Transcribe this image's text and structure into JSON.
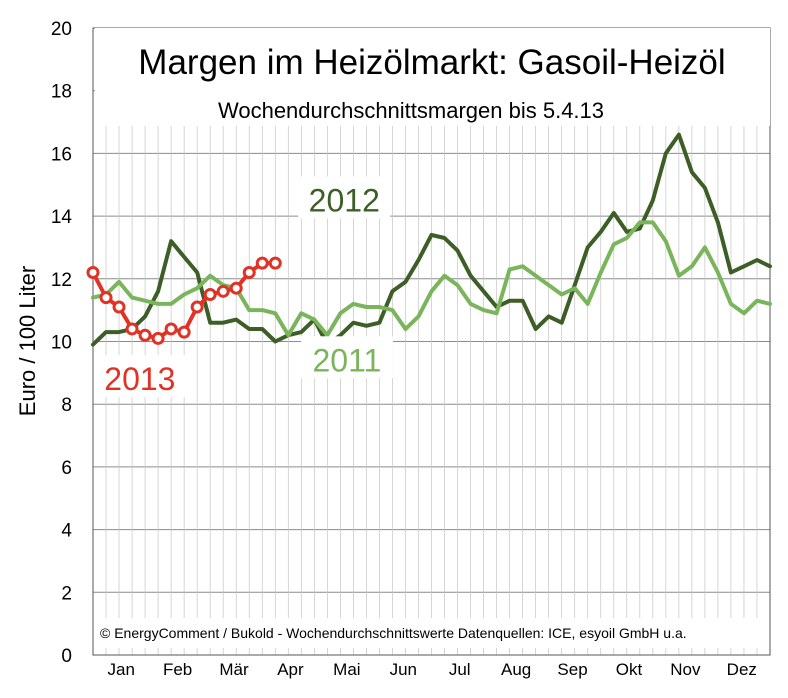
{
  "chart_data": {
    "type": "line",
    "title": "Margen im Heizölmarkt: Gasoil-Heizöl",
    "subtitle": "Wochendurchschnittsmargen bis 5.4.13",
    "ylabel": "Euro / 100 Liter",
    "xlabel": "",
    "ylim": [
      0,
      20
    ],
    "yticks": [
      0,
      2,
      4,
      6,
      8,
      10,
      12,
      14,
      16,
      18,
      20
    ],
    "xlim": [
      0,
      52
    ],
    "months": [
      "Jan",
      "Feb",
      "Mär",
      "Apr",
      "Mai",
      "Jun",
      "Jul",
      "Aug",
      "Sep",
      "Okt",
      "Nov",
      "Dez"
    ],
    "source_note": "© EnergyComment / Bukold - Wochendurchschnittswerte Datenquellen: ICE, esyoil GmbH u.a.",
    "grid": true,
    "series": [
      {
        "name": "2012",
        "color": "#3d5e26",
        "marker": "none",
        "x": [
          0,
          1,
          2,
          3,
          4,
          5,
          6,
          7,
          8,
          9,
          10,
          11,
          12,
          13,
          14,
          15,
          16,
          17,
          18,
          19,
          20,
          21,
          22,
          23,
          24,
          25,
          26,
          27,
          28,
          29,
          30,
          31,
          32,
          33,
          34,
          35,
          36,
          37,
          38,
          39,
          40,
          41,
          42,
          43,
          44,
          45,
          46,
          47,
          48,
          49,
          50,
          51,
          52
        ],
        "values": [
          9.9,
          10.3,
          10.3,
          10.4,
          10.8,
          11.6,
          13.2,
          12.7,
          12.2,
          10.6,
          10.6,
          10.7,
          10.4,
          10.4,
          10.0,
          10.2,
          10.3,
          10.7,
          9.9,
          10.2,
          10.6,
          10.5,
          10.6,
          11.6,
          11.9,
          12.6,
          13.4,
          13.3,
          12.9,
          12.1,
          11.6,
          11.1,
          11.3,
          11.3,
          10.4,
          10.8,
          10.6,
          11.8,
          13.0,
          13.5,
          14.1,
          13.5,
          13.6,
          14.5,
          16.0,
          16.6,
          15.4,
          14.9,
          13.8,
          12.2,
          12.4,
          12.6,
          12.4
        ]
      },
      {
        "name": "2011",
        "color": "#7ab55c",
        "marker": "none",
        "x": [
          0,
          1,
          2,
          3,
          4,
          5,
          6,
          7,
          8,
          9,
          10,
          11,
          12,
          13,
          14,
          15,
          16,
          17,
          18,
          19,
          20,
          21,
          22,
          23,
          24,
          25,
          26,
          27,
          28,
          29,
          30,
          31,
          32,
          33,
          34,
          35,
          36,
          37,
          38,
          39,
          40,
          41,
          42,
          43,
          44,
          45,
          46,
          47,
          48,
          49,
          50,
          51,
          52
        ],
        "values": [
          11.4,
          11.5,
          11.9,
          11.4,
          11.3,
          11.2,
          11.2,
          11.5,
          11.7,
          12.1,
          11.8,
          11.7,
          11.0,
          11.0,
          10.9,
          10.2,
          10.9,
          10.7,
          10.2,
          10.9,
          11.2,
          11.1,
          11.1,
          11.0,
          10.4,
          10.8,
          11.6,
          12.1,
          11.8,
          11.2,
          11.0,
          10.9,
          12.3,
          12.4,
          12.1,
          11.8,
          11.5,
          11.7,
          11.2,
          12.2,
          13.1,
          13.3,
          13.8,
          13.8,
          13.2,
          12.1,
          12.4,
          13.0,
          12.2,
          11.2,
          10.9,
          11.3,
          11.2
        ]
      },
      {
        "name": "2013",
        "color": "#e03326",
        "marker": "circle",
        "x": [
          0,
          1,
          2,
          3,
          4,
          5,
          6,
          7,
          8,
          9,
          10,
          11,
          12,
          13,
          14
        ],
        "values": [
          12.2,
          11.4,
          11.1,
          10.4,
          10.2,
          10.1,
          10.4,
          10.3,
          11.1,
          11.5,
          11.6,
          11.7,
          12.2,
          12.5,
          12.5
        ]
      }
    ]
  }
}
